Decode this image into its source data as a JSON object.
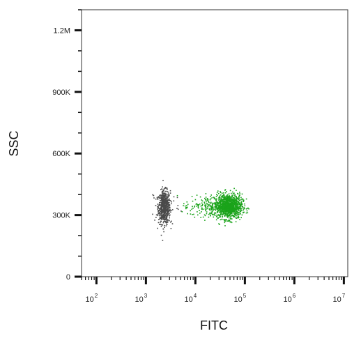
{
  "chart_data": {
    "type": "scatter",
    "title": "",
    "xlabel": "FITC",
    "ylabel": "SSC",
    "x_scale": "log",
    "xlim": [
      50,
      12000000
    ],
    "ylim": [
      0,
      1300000
    ],
    "x_ticks": [
      {
        "value": 100,
        "base": "10",
        "exp": "2"
      },
      {
        "value": 1000,
        "base": "10",
        "exp": "3"
      },
      {
        "value": 10000,
        "base": "10",
        "exp": "4"
      },
      {
        "value": 100000,
        "base": "10",
        "exp": "5"
      },
      {
        "value": 1000000,
        "base": "10",
        "exp": "6"
      },
      {
        "value": 10000000,
        "base": "10",
        "exp": "7"
      }
    ],
    "y_ticks": [
      {
        "value": 0,
        "label": "0"
      },
      {
        "value": 300000,
        "label": "300K"
      },
      {
        "value": 600000,
        "label": "600K"
      },
      {
        "value": 900000,
        "label": "900K"
      },
      {
        "value": 1200000,
        "label": "1.2M"
      }
    ],
    "grid": false,
    "legend": "none",
    "series": [
      {
        "color": "#4a4a4a",
        "clusters": [
          {
            "x_center": 2300,
            "x_spread": 0.06,
            "y_center": 340000,
            "y_spread": 40000,
            "count": 600
          },
          {
            "x_center": 2400,
            "x_spread": 0.15,
            "y_center": 350000,
            "y_spread": 45000,
            "count": 60
          }
        ]
      },
      {
        "color": "#1aa31a",
        "clusters": [
          {
            "x_center": 45000,
            "x_spread": 0.14,
            "y_center": 345000,
            "y_spread": 30000,
            "count": 1100
          },
          {
            "x_center": 20000,
            "x_spread": 0.2,
            "y_center": 345000,
            "y_spread": 25000,
            "count": 160
          },
          {
            "x_center": 7000,
            "x_spread": 0.15,
            "y_center": 340000,
            "y_spread": 20000,
            "count": 20
          }
        ]
      }
    ]
  }
}
